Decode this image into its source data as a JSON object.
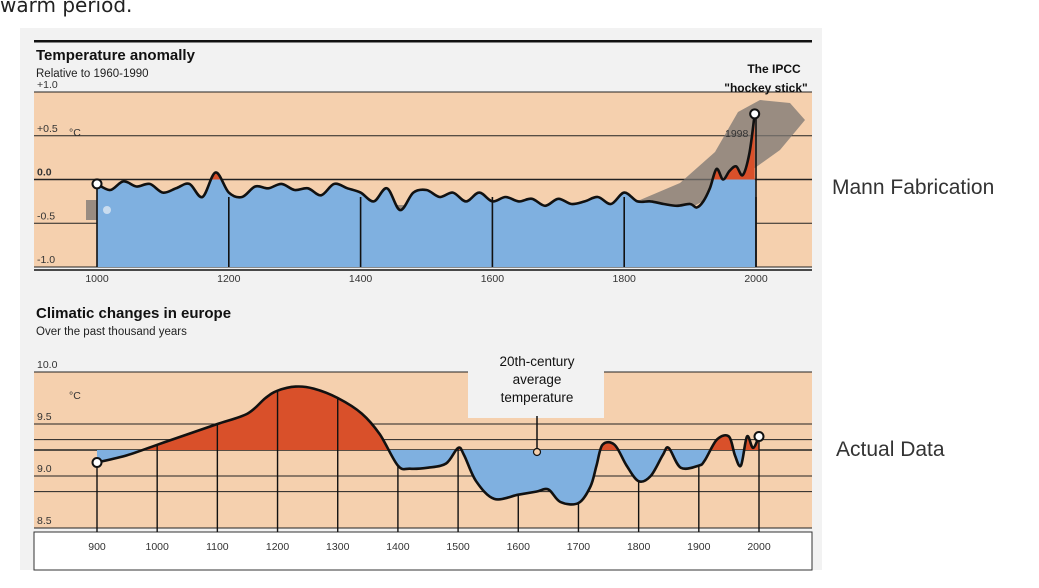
{
  "page": {
    "cropped_text": "warm period.",
    "side_labels": [
      "Mann Fabrication",
      "Actual Data"
    ]
  },
  "colors": {
    "band": "#f5d0ae",
    "blue": "#7fb0e0",
    "red": "#d9502a",
    "line": "#111111",
    "shade": "#8a8580"
  },
  "chart_data": [
    {
      "type": "area",
      "title": "Temperature anomally",
      "subtitle": "Relative to 1960-1990",
      "unit_label": "°C",
      "xlim": [
        1000,
        2000
      ],
      "ylim": [
        -1.0,
        1.0
      ],
      "x_ticks": [
        "1000",
        "1200",
        "1400",
        "1600",
        "1800",
        "2000"
      ],
      "y_ticks": [
        "+1.0",
        "+0.5",
        "0.0",
        "-0.5",
        "-1.0"
      ],
      "annotations": [
        "The IPCC",
        "\"hockey stick\"",
        "1998"
      ],
      "series": [
        {
          "x": [
            1000,
            1020,
            1040,
            1060,
            1080,
            1100,
            1120,
            1140,
            1160,
            1180,
            1200,
            1220,
            1240,
            1260,
            1280,
            1300,
            1320,
            1340,
            1360,
            1380,
            1400,
            1420,
            1440,
            1460,
            1480,
            1500,
            1520,
            1540,
            1560,
            1580,
            1600,
            1620,
            1640,
            1660,
            1680,
            1700,
            1720,
            1740,
            1760,
            1780,
            1800,
            1820,
            1840,
            1860,
            1880,
            1900,
            1910,
            1920,
            1930,
            1940,
            1950,
            1960,
            1970,
            1980,
            1990,
            1998
          ],
          "y": [
            -0.05,
            -0.12,
            -0.02,
            -0.08,
            -0.05,
            -0.15,
            -0.1,
            -0.05,
            -0.2,
            0.08,
            -0.15,
            -0.2,
            -0.08,
            -0.1,
            -0.05,
            -0.12,
            -0.1,
            -0.18,
            -0.05,
            -0.1,
            -0.15,
            -0.25,
            -0.1,
            -0.35,
            -0.15,
            -0.12,
            -0.2,
            -0.15,
            -0.25,
            -0.15,
            -0.25,
            -0.2,
            -0.25,
            -0.22,
            -0.3,
            -0.22,
            -0.28,
            -0.25,
            -0.2,
            -0.28,
            -0.15,
            -0.25,
            -0.25,
            -0.28,
            -0.3,
            -0.28,
            -0.32,
            -0.25,
            -0.1,
            0.12,
            0.0,
            0.1,
            0.15,
            0.05,
            0.3,
            0.75
          ]
        }
      ]
    },
    {
      "type": "area",
      "title": "Climatic changes in europe",
      "subtitle": "Over the past thousand years",
      "unit_label": "°C",
      "xlim": [
        900,
        2000
      ],
      "ylim": [
        8.5,
        10.0
      ],
      "x_ticks": [
        "900",
        "1000",
        "1100",
        "1200",
        "1300",
        "1400",
        "1500",
        "1600",
        "1700",
        "1800",
        "1900",
        "2000"
      ],
      "y_ticks": [
        "10.0",
        "9.5",
        "9.0",
        "8.5"
      ],
      "annotations": [
        "20th-century",
        "average",
        "temperature"
      ],
      "baseline": 9.25,
      "series": [
        {
          "x": [
            900,
            950,
            1000,
            1050,
            1100,
            1150,
            1180,
            1200,
            1230,
            1260,
            1300,
            1340,
            1370,
            1400,
            1420,
            1450,
            1480,
            1500,
            1510,
            1530,
            1560,
            1600,
            1630,
            1650,
            1670,
            1700,
            1720,
            1730,
            1740,
            1760,
            1780,
            1800,
            1820,
            1840,
            1850,
            1870,
            1900,
            1910,
            1930,
            1950,
            1960,
            1970,
            1980,
            1990,
            2000
          ],
          "y": [
            9.13,
            9.2,
            9.3,
            9.4,
            9.5,
            9.6,
            9.75,
            9.82,
            9.86,
            9.84,
            9.75,
            9.6,
            9.4,
            9.1,
            9.07,
            9.08,
            9.12,
            9.27,
            9.2,
            8.95,
            8.78,
            8.82,
            8.85,
            8.87,
            8.75,
            8.74,
            8.9,
            9.1,
            9.3,
            9.3,
            9.1,
            8.95,
            9.0,
            9.2,
            9.27,
            9.08,
            9.1,
            9.15,
            9.35,
            9.38,
            9.2,
            9.1,
            9.38,
            9.27,
            9.38
          ]
        }
      ]
    }
  ]
}
